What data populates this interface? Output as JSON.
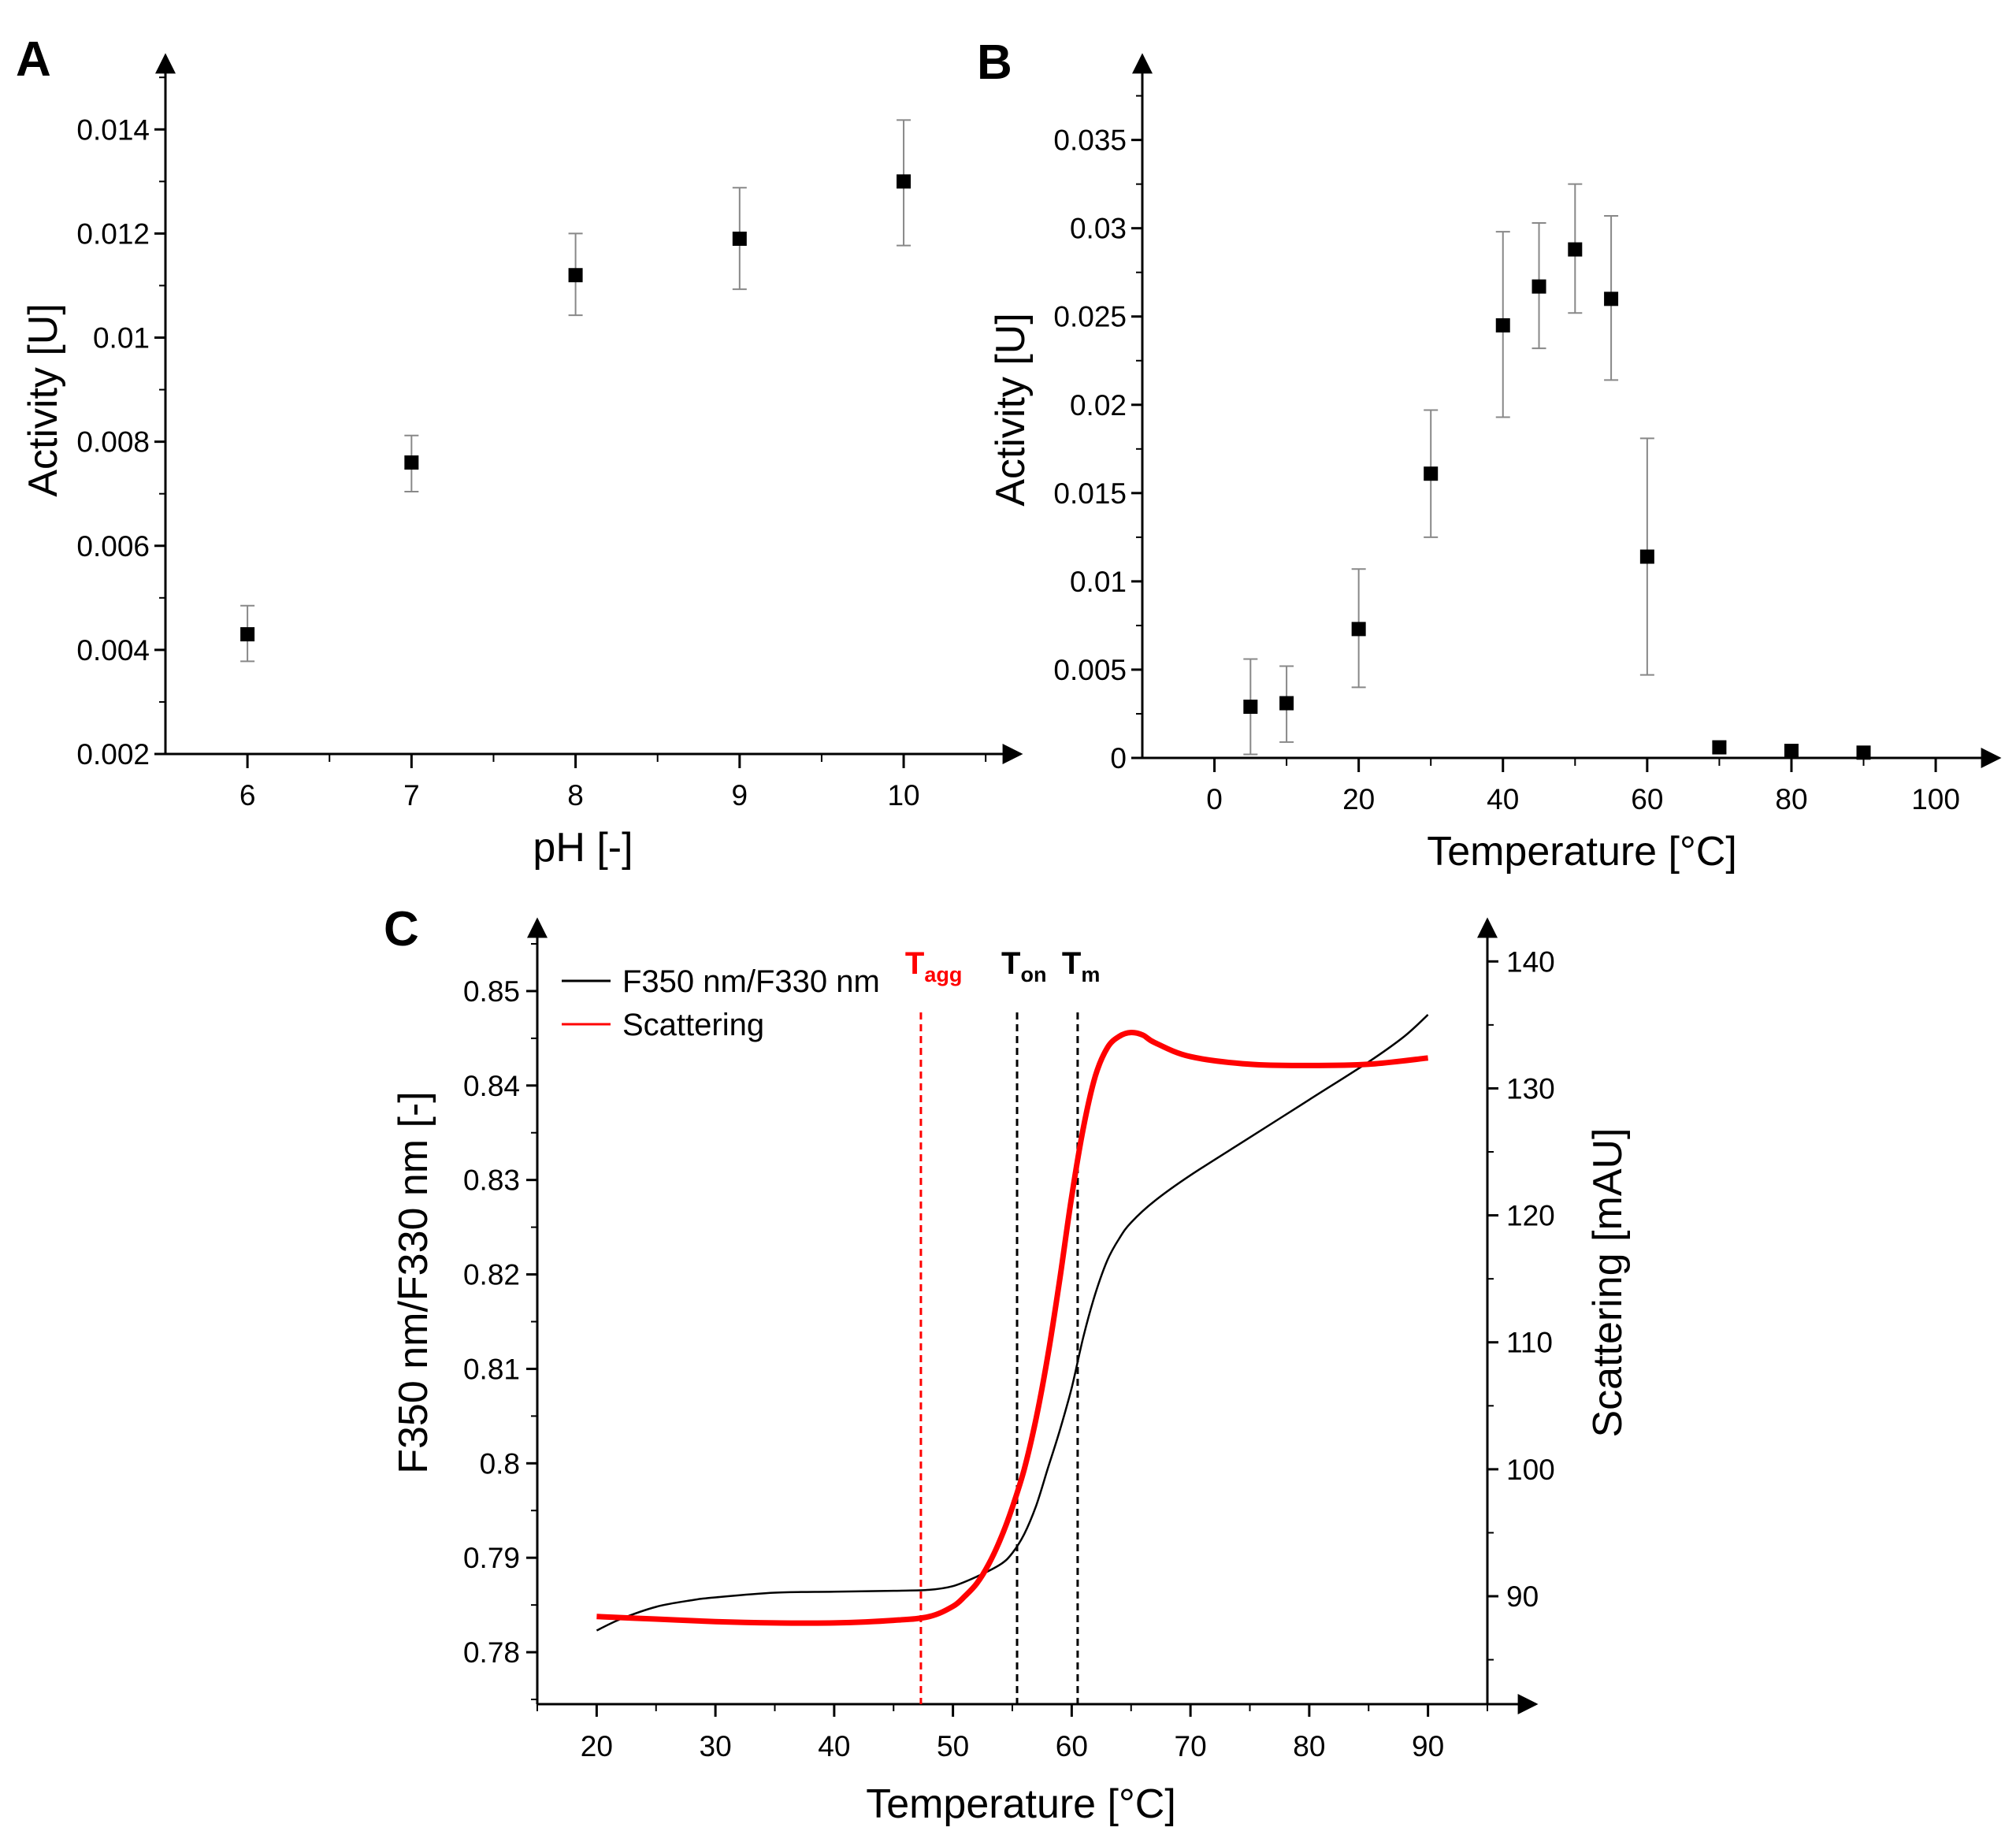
{
  "colors": {
    "axis": "#000000",
    "marker": "#000000",
    "errorbar": "#888888",
    "ratio_line": "#000000",
    "scattering_line": "#ff0000",
    "t_agg": "#ff0000",
    "t_on": "#000000",
    "t_m": "#000000"
  },
  "chart_data": [
    {
      "panel": "A",
      "type": "scatter",
      "xlabel": "pH [-]",
      "ylabel": "Activity [U]",
      "xlim": [
        5.5,
        10.6
      ],
      "ylim": [
        0.002,
        0.0152
      ],
      "x_ticks": [
        6,
        7,
        8,
        9,
        10
      ],
      "x_tick_labels": [
        "6",
        "7",
        "8",
        "9",
        "10"
      ],
      "y_ticks": [
        0.002,
        0.004,
        0.006,
        0.008,
        0.01,
        0.012,
        0.014
      ],
      "y_tick_labels": [
        "0.002",
        "0.004",
        "0.006",
        "0.008",
        "0.01",
        "0.012",
        "0.014"
      ],
      "x": [
        6,
        7,
        8,
        9,
        10
      ],
      "y": [
        0.0043,
        0.0076,
        0.0112,
        0.0119,
        0.013
      ],
      "err_low": [
        0.00378,
        0.00704,
        0.01043,
        0.01093,
        0.01177
      ],
      "err_high": [
        0.00485,
        0.00812,
        0.012,
        0.01288,
        0.01418
      ]
    },
    {
      "panel": "B",
      "type": "scatter",
      "xlabel": "Temperature [°C]",
      "ylabel": "Activity [U]",
      "xlim": [
        -10,
        106
      ],
      "ylim": [
        0,
        0.039
      ],
      "x_ticks": [
        0,
        20,
        40,
        60,
        80,
        100
      ],
      "x_tick_labels": [
        "0",
        "20",
        "40",
        "60",
        "80",
        "100"
      ],
      "y_ticks": [
        0,
        0.005,
        0.01,
        0.015,
        0.02,
        0.025,
        0.03,
        0.035
      ],
      "y_tick_labels": [
        "0",
        "0.005",
        "0.01",
        "0.015",
        "0.02",
        "0.025",
        "0.03",
        "0.035"
      ],
      "x": [
        5,
        10,
        20,
        30,
        40,
        45,
        50,
        55,
        60,
        70,
        80,
        90
      ],
      "y": [
        0.0029,
        0.0031,
        0.0073,
        0.0161,
        0.0245,
        0.0267,
        0.0288,
        0.026,
        0.0114,
        0.0006,
        0.0004,
        0.0003
      ],
      "err_low": [
        0.0002,
        0.0009,
        0.004,
        0.0125,
        0.0193,
        0.0232,
        0.0252,
        0.0214,
        0.0047,
        0.0003,
        0.0002,
        0.0002
      ],
      "err_high": [
        0.0056,
        0.0052,
        0.0107,
        0.0197,
        0.0298,
        0.0303,
        0.0325,
        0.0307,
        0.0181,
        0.0009,
        0.0006,
        0.0004
      ]
    },
    {
      "panel": "C",
      "type": "line",
      "xlabel": "Temperature [°C]",
      "ylabel": "F350 nm/F330 nm [-]",
      "y2label": "Scattering [mAU]",
      "xlim": [
        15,
        95
      ],
      "ylim": [
        0.7745,
        0.8565
      ],
      "y2lim": [
        81.5,
        142.5
      ],
      "x_ticks": [
        20,
        30,
        40,
        50,
        60,
        70,
        80,
        90
      ],
      "x_tick_labels": [
        "20",
        "30",
        "40",
        "50",
        "60",
        "70",
        "80",
        "90"
      ],
      "y_ticks": [
        0.78,
        0.79,
        0.8,
        0.81,
        0.82,
        0.83,
        0.84,
        0.85
      ],
      "y_tick_labels": [
        "0.78",
        "0.79",
        "0.8",
        "0.81",
        "0.82",
        "0.83",
        "0.84",
        "0.85"
      ],
      "y2_ticks": [
        90,
        100,
        110,
        120,
        130,
        140
      ],
      "y2_tick_labels": [
        "90",
        "100",
        "110",
        "120",
        "130",
        "140"
      ],
      "legend": {
        "position": "top-left",
        "entries": [
          "F350 nm/F330 nm",
          "Scattering"
        ]
      },
      "markers": [
        {
          "name": "T_agg",
          "main": "T",
          "sub": "agg",
          "x": 47.3
        },
        {
          "name": "T_on",
          "main": "T",
          "sub": "on",
          "x": 55.4
        },
        {
          "name": "T_m",
          "main": "T",
          "sub": "m",
          "x": 60.5
        }
      ],
      "series": [
        {
          "name": "F350 nm/F330 nm",
          "axis": "left",
          "x": [
            20,
            22,
            25,
            28,
            30,
            35,
            40,
            45,
            48,
            50,
            52,
            54,
            55,
            56,
            57,
            58,
            59,
            60,
            61,
            62,
            63,
            64,
            65,
            67,
            70,
            75,
            80,
            85,
            88,
            90
          ],
          "y": [
            0.7823,
            0.7835,
            0.7848,
            0.7855,
            0.7858,
            0.7863,
            0.7864,
            0.7865,
            0.7866,
            0.787,
            0.788,
            0.7893,
            0.7905,
            0.7925,
            0.7955,
            0.7995,
            0.8035,
            0.808,
            0.8135,
            0.818,
            0.8215,
            0.8238,
            0.8255,
            0.8278,
            0.8305,
            0.8345,
            0.8385,
            0.8425,
            0.8452,
            0.8475
          ]
        },
        {
          "name": "Scattering",
          "axis": "right",
          "x": [
            20,
            25,
            30,
            35,
            40,
            45,
            48,
            50,
            51,
            52,
            53,
            54,
            55,
            56,
            57,
            58,
            59,
            60,
            61,
            62,
            63,
            64,
            65,
            66,
            67,
            70,
            75,
            80,
            85,
            90
          ],
          "y": [
            88.4,
            88.2,
            88.0,
            87.9,
            87.9,
            88.1,
            88.4,
            89.2,
            90.0,
            91.0,
            92.5,
            94.5,
            97.0,
            100.0,
            104.0,
            109.0,
            115.0,
            121.5,
            127.0,
            131.0,
            133.2,
            134.1,
            134.4,
            134.2,
            133.6,
            132.5,
            131.9,
            131.8,
            131.9,
            132.4
          ]
        }
      ]
    }
  ]
}
